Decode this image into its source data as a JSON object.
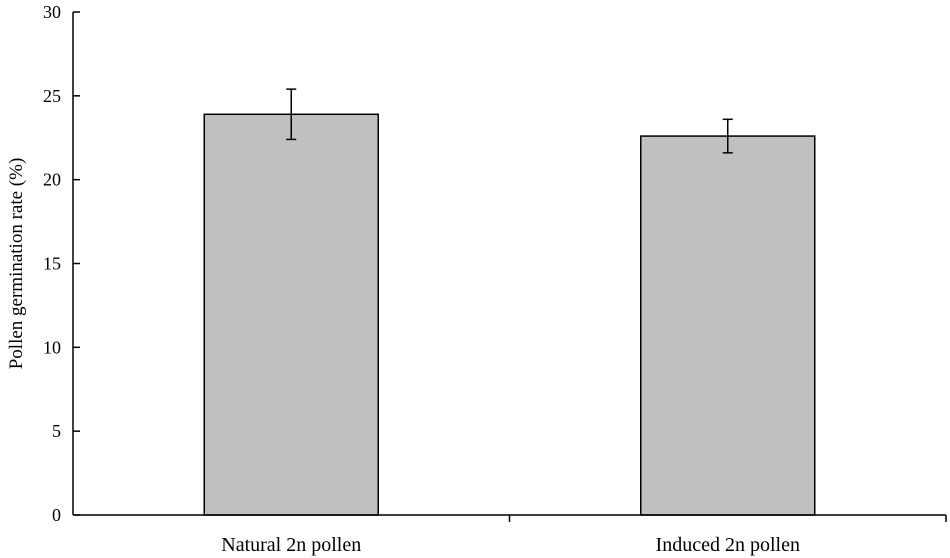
{
  "chart_data": {
    "type": "bar",
    "title": "",
    "xlabel": "",
    "ylabel": "Pollen germination rate (%)",
    "categories": [
      "Natural 2n pollen",
      "Induced 2n pollen"
    ],
    "values": [
      23.9,
      22.6
    ],
    "error": [
      1.5,
      1.0
    ],
    "ylim": [
      0,
      30
    ],
    "yticks": [
      0,
      5,
      10,
      15,
      20,
      25,
      30
    ],
    "ytick_labels": [
      "0",
      "5",
      "10",
      "15",
      "20",
      "25",
      "30"
    ],
    "grid": false,
    "legend": "none",
    "bar_color": "#c0c0c0",
    "edge_color": "#000000"
  }
}
